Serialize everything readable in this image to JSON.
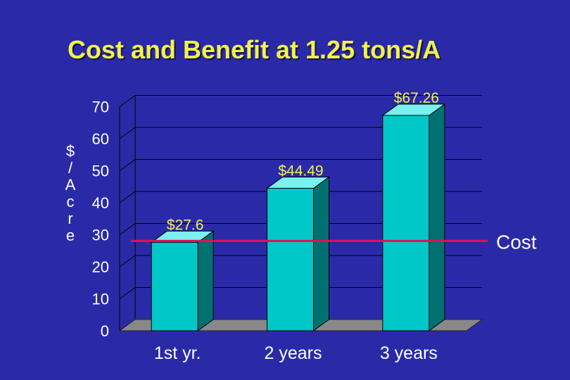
{
  "chart_data": {
    "type": "bar",
    "title": "Cost and Benefit at 1.25 tons/A",
    "ylabel": "$/Acre",
    "ylabel_chars": [
      "$",
      "/",
      "A",
      "c",
      "r",
      "e"
    ],
    "xlabel": "",
    "ylim": [
      0,
      70
    ],
    "yticks": [
      0,
      10,
      20,
      30,
      40,
      50,
      60,
      70
    ],
    "categories": [
      "1st yr.",
      "2 years",
      "3 years"
    ],
    "values": [
      27.6,
      44.49,
      67.26
    ],
    "data_labels": [
      "$27.6",
      "$44.49",
      "$67.26"
    ],
    "reference_line": {
      "label": "Cost",
      "value": 27.6,
      "color": "#e0105a"
    },
    "bar_color": "#00c8c8",
    "grid": true,
    "colors": {
      "background": "#2a2aa8",
      "title": "#f2f24a",
      "labels": "#ffffff",
      "data_labels": "#f2f24a",
      "floor": "#888888"
    }
  }
}
